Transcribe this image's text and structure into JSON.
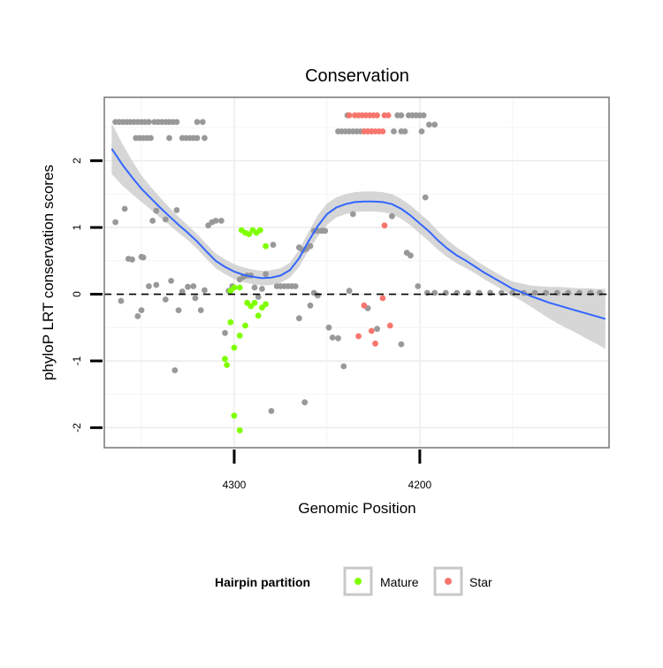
{
  "chart_data": {
    "type": "scatter",
    "title": "Conservation",
    "xlabel": "Genomic Position",
    "ylabel": "phyloP LRT conservation scores",
    "x_reversed": true,
    "xlim": [
      4370,
      4098
    ],
    "ylim": [
      -2.3,
      2.95
    ],
    "x_ticks": [
      4300,
      4200
    ],
    "x_tick_labels": [
      "4300",
      "4200"
    ],
    "y_ticks": [
      -2,
      -1,
      0,
      1,
      2
    ],
    "y_tick_labels": [
      "-2",
      "-1",
      "0",
      "1",
      "2"
    ],
    "grid": true,
    "legend": {
      "title": "Hairpin partition",
      "position": "bottom",
      "items": [
        {
          "label": "Mature",
          "color": "#7fff00"
        },
        {
          "label": "Star",
          "color": "#f8766d"
        }
      ]
    },
    "colors": {
      "other": "#999999",
      "smooth_line": "#3366ff",
      "ribbon": "#c8c8c8"
    },
    "reference_line": {
      "y": 0,
      "style": "dashed"
    },
    "series": [
      {
        "name": "Other",
        "points": [
          [
            4364,
            2.58
          ],
          [
            4362,
            2.58
          ],
          [
            4360,
            2.58
          ],
          [
            4358,
            2.58
          ],
          [
            4356,
            2.58
          ],
          [
            4354,
            2.58
          ],
          [
            4352,
            2.58
          ],
          [
            4350,
            2.58
          ],
          [
            4348,
            2.58
          ],
          [
            4346,
            2.58
          ],
          [
            4353,
            2.34
          ],
          [
            4351,
            2.34
          ],
          [
            4349,
            2.34
          ],
          [
            4347,
            2.34
          ],
          [
            4345,
            2.34
          ],
          [
            4343,
            2.58
          ],
          [
            4341,
            2.58
          ],
          [
            4339,
            2.58
          ],
          [
            4337,
            2.58
          ],
          [
            4335,
            2.58
          ],
          [
            4333,
            2.58
          ],
          [
            4331,
            2.58
          ],
          [
            4335,
            2.34
          ],
          [
            4328,
            2.34
          ],
          [
            4326,
            2.34
          ],
          [
            4324,
            2.34
          ],
          [
            4322,
            2.34
          ],
          [
            4320,
            2.34
          ],
          [
            4316,
            2.34
          ],
          [
            4320,
            2.58
          ],
          [
            4317,
            2.58
          ],
          [
            4195,
            2.54
          ],
          [
            4192,
            2.54
          ],
          [
            4244,
            2.44
          ],
          [
            4242,
            2.44
          ],
          [
            4240,
            2.44
          ],
          [
            4238,
            2.44
          ],
          [
            4236,
            2.44
          ],
          [
            4234,
            2.44
          ],
          [
            4232,
            2.44
          ],
          [
            4230,
            2.44
          ],
          [
            4228,
            2.44
          ],
          [
            4226,
            2.44
          ],
          [
            4214,
            2.44
          ],
          [
            4210,
            2.44
          ],
          [
            4208,
            2.44
          ],
          [
            4199,
            2.44
          ],
          [
            4239,
            2.68
          ],
          [
            4212,
            2.68
          ],
          [
            4210,
            2.68
          ],
          [
            4206,
            2.68
          ],
          [
            4204,
            2.68
          ],
          [
            4202,
            2.68
          ],
          [
            4200,
            2.68
          ],
          [
            4198,
            2.68
          ],
          [
            4364,
            1.08
          ],
          [
            4359,
            1.28
          ],
          [
            4357,
            0.53
          ],
          [
            4355,
            0.52
          ],
          [
            4350,
            0.56
          ],
          [
            4349,
            0.55
          ],
          [
            4344,
            1.1
          ],
          [
            4342,
            1.25
          ],
          [
            4337,
            1.12
          ],
          [
            4331,
            1.26
          ],
          [
            4361,
            -0.1
          ],
          [
            4352,
            -0.33
          ],
          [
            4350,
            -0.24
          ],
          [
            4346,
            0.12
          ],
          [
            4342,
            0.14
          ],
          [
            4337,
            -0.08
          ],
          [
            4334,
            0.2
          ],
          [
            4332,
            -1.14
          ],
          [
            4330,
            -0.24
          ],
          [
            4328,
            0.04
          ],
          [
            4325,
            0.11
          ],
          [
            4322,
            0.12
          ],
          [
            4321,
            -0.06
          ],
          [
            4318,
            -0.24
          ],
          [
            4316,
            0.06
          ],
          [
            4314,
            1.03
          ],
          [
            4312,
            1.08
          ],
          [
            4310,
            1.1
          ],
          [
            4307,
            1.1
          ],
          [
            4305,
            -0.58
          ],
          [
            4303,
            0.05
          ],
          [
            4301,
            0.12
          ],
          [
            4297,
            0.22
          ],
          [
            4295,
            0.26
          ],
          [
            4293,
            0.28
          ],
          [
            4291,
            0.28
          ],
          [
            4289,
            0.1
          ],
          [
            4287,
            -0.04
          ],
          [
            4285,
            0.08
          ],
          [
            4283,
            0.3
          ],
          [
            4280,
            -1.75
          ],
          [
            4279,
            0.74
          ],
          [
            4277,
            0.12
          ],
          [
            4275,
            0.12
          ],
          [
            4273,
            0.12
          ],
          [
            4271,
            0.12
          ],
          [
            4269,
            0.12
          ],
          [
            4267,
            0.12
          ],
          [
            4265,
            0.7
          ],
          [
            4263,
            0.66
          ],
          [
            4261,
            0.68
          ],
          [
            4259,
            0.72
          ],
          [
            4257,
            0.95
          ],
          [
            4255,
            0.95
          ],
          [
            4253,
            0.95
          ],
          [
            4252,
            0.95
          ],
          [
            4251,
            0.95
          ],
          [
            4265,
            -0.36
          ],
          [
            4262,
            -1.62
          ],
          [
            4259,
            -0.17
          ],
          [
            4257,
            0.02
          ],
          [
            4255,
            -0.02
          ],
          [
            4249,
            -0.5
          ],
          [
            4247,
            -0.65
          ],
          [
            4244,
            -0.66
          ],
          [
            4241,
            -1.08
          ],
          [
            4238,
            0.05
          ],
          [
            4236,
            1.2
          ],
          [
            4228,
            -0.21
          ],
          [
            4223,
            -0.52
          ],
          [
            4215,
            1.17
          ],
          [
            4210,
            -0.75
          ],
          [
            4207,
            0.62
          ],
          [
            4205,
            0.58
          ],
          [
            4201,
            0.12
          ],
          [
            4197,
            1.45
          ],
          [
            4196,
            0.02
          ],
          [
            4192,
            0.02
          ],
          [
            4186,
            0.02
          ],
          [
            4180,
            0.02
          ],
          [
            4174,
            0.02
          ],
          [
            4168,
            0.02
          ],
          [
            4162,
            0.02
          ],
          [
            4156,
            0.02
          ],
          [
            4150,
            0.02
          ],
          [
            4144,
            0.02
          ],
          [
            4138,
            0.02
          ],
          [
            4132,
            0.02
          ],
          [
            4126,
            0.02
          ],
          [
            4120,
            0.02
          ],
          [
            4114,
            0.02
          ],
          [
            4108,
            0.02
          ],
          [
            4103,
            0.02
          ]
        ]
      },
      {
        "name": "Mature",
        "points": [
          [
            4296,
            0.96
          ],
          [
            4294,
            0.92
          ],
          [
            4292,
            0.9
          ],
          [
            4290,
            0.96
          ],
          [
            4288,
            0.92
          ],
          [
            4286,
            0.96
          ],
          [
            4283,
            0.72
          ],
          [
            4300,
            0.1
          ],
          [
            4302,
            0.05
          ],
          [
            4297,
            0.1
          ],
          [
            4293,
            -0.13
          ],
          [
            4291,
            -0.18
          ],
          [
            4289,
            -0.13
          ],
          [
            4287,
            -0.32
          ],
          [
            4285,
            -0.2
          ],
          [
            4283,
            -0.15
          ],
          [
            4302,
            -0.42
          ],
          [
            4294,
            -0.47
          ],
          [
            4297,
            -0.62
          ],
          [
            4300,
            -0.8
          ],
          [
            4305,
            -0.97
          ],
          [
            4304,
            -1.06
          ],
          [
            4300,
            -1.82
          ],
          [
            4297,
            -2.04
          ]
        ]
      },
      {
        "name": "Star",
        "points": [
          [
            4238,
            2.68
          ],
          [
            4235,
            2.68
          ],
          [
            4233,
            2.68
          ],
          [
            4231,
            2.68
          ],
          [
            4229,
            2.68
          ],
          [
            4227,
            2.68
          ],
          [
            4225,
            2.68
          ],
          [
            4223,
            2.68
          ],
          [
            4219,
            2.68
          ],
          [
            4217,
            2.68
          ],
          [
            4230,
            2.44
          ],
          [
            4228,
            2.44
          ],
          [
            4226,
            2.44
          ],
          [
            4224,
            2.44
          ],
          [
            4222,
            2.44
          ],
          [
            4220,
            2.44
          ],
          [
            4219,
            1.03
          ],
          [
            4220,
            -0.06
          ],
          [
            4230,
            -0.17
          ],
          [
            4216,
            -0.47
          ],
          [
            4226,
            -0.55
          ],
          [
            4233,
            -0.63
          ],
          [
            4224,
            -0.74
          ]
        ]
      }
    ],
    "smooth": {
      "x": [
        4366,
        4360,
        4355,
        4350,
        4345,
        4340,
        4335,
        4330,
        4325,
        4320,
        4315,
        4310,
        4305,
        4300,
        4295,
        4290,
        4285,
        4280,
        4275,
        4270,
        4265,
        4260,
        4255,
        4250,
        4245,
        4240,
        4235,
        4230,
        4225,
        4220,
        4215,
        4210,
        4205,
        4200,
        4195,
        4190,
        4185,
        4180,
        4175,
        4170,
        4165,
        4160,
        4155,
        4150,
        4145,
        4140,
        4135,
        4130,
        4125,
        4120,
        4115,
        4110,
        4105,
        4100
      ],
      "y": [
        2.18,
        1.93,
        1.75,
        1.58,
        1.44,
        1.3,
        1.17,
        1.04,
        0.92,
        0.79,
        0.64,
        0.5,
        0.41,
        0.34,
        0.29,
        0.26,
        0.24,
        0.25,
        0.28,
        0.36,
        0.54,
        0.79,
        1.02,
        1.2,
        1.3,
        1.35,
        1.38,
        1.39,
        1.39,
        1.38,
        1.35,
        1.28,
        1.18,
        1.06,
        0.94,
        0.8,
        0.68,
        0.58,
        0.5,
        0.41,
        0.32,
        0.24,
        0.16,
        0.08,
        0.03,
        -0.03,
        -0.08,
        -0.13,
        -0.17,
        -0.21,
        -0.25,
        -0.29,
        -0.33,
        -0.37
      ],
      "se": [
        0.38,
        0.31,
        0.25,
        0.2,
        0.17,
        0.15,
        0.13,
        0.12,
        0.11,
        0.11,
        0.11,
        0.11,
        0.11,
        0.11,
        0.11,
        0.11,
        0.11,
        0.11,
        0.11,
        0.11,
        0.13,
        0.14,
        0.16,
        0.16,
        0.15,
        0.15,
        0.15,
        0.15,
        0.15,
        0.15,
        0.15,
        0.15,
        0.15,
        0.15,
        0.15,
        0.14,
        0.13,
        0.12,
        0.11,
        0.1,
        0.1,
        0.1,
        0.1,
        0.11,
        0.13,
        0.16,
        0.2,
        0.24,
        0.28,
        0.31,
        0.34,
        0.38,
        0.41,
        0.45
      ]
    }
  }
}
